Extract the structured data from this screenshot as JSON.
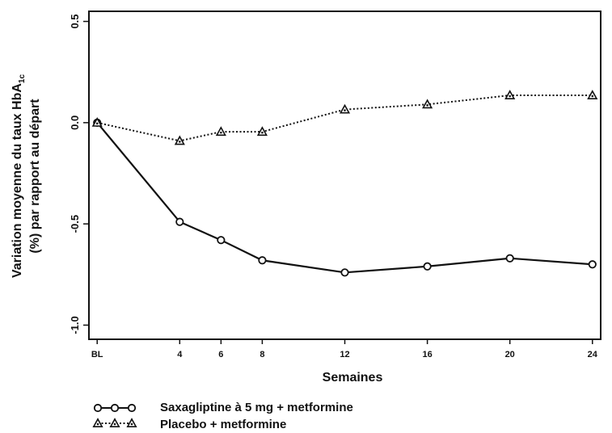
{
  "chart_data": {
    "type": "line",
    "title": "",
    "xlabel": "Semaines",
    "ylabel_line1": "Variation moyenne du taux HbA",
    "ylabel_line1_sub": "1c",
    "ylabel_line2": "(%) par rapport au départ",
    "x_categories": [
      "BL",
      "4",
      "6",
      "8",
      "12",
      "16",
      "20",
      "24"
    ],
    "x_values": [
      0,
      4,
      6,
      8,
      12,
      16,
      20,
      24
    ],
    "xlim": [
      -0.4,
      24.4
    ],
    "ylim": [
      -1.07,
      0.55
    ],
    "y_ticks": [
      0.5,
      0.0,
      -0.5,
      -1.0
    ],
    "y_tick_labels": [
      "0.5",
      "0.0",
      "-0.5",
      "-1.0"
    ],
    "grid": false,
    "series": [
      {
        "name": "Saxagliptine à 5 mg + metformine",
        "values": [
          0.0,
          -0.49,
          -0.58,
          -0.68,
          -0.74,
          -0.71,
          -0.67,
          -0.7
        ],
        "marker": "circle",
        "line_style": "solid",
        "color": "#111111"
      },
      {
        "name": "Placebo + metformine",
        "values": [
          0.0,
          -0.09,
          -0.045,
          -0.045,
          0.065,
          0.09,
          0.135,
          0.135
        ],
        "marker": "triangle",
        "line_style": "dotted",
        "color": "#111111"
      }
    ],
    "legend_placement": "bottom-left"
  }
}
